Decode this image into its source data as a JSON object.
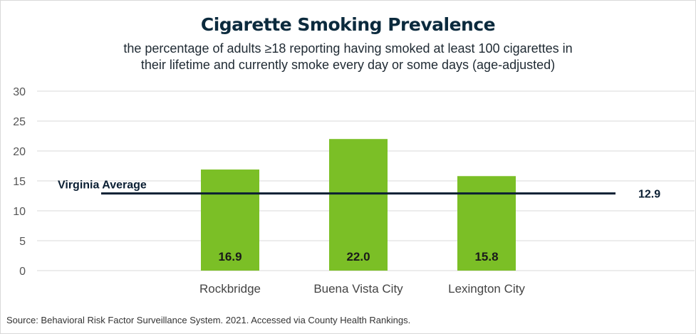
{
  "chart_data": {
    "type": "bar",
    "title": "Cigarette Smoking Prevalence",
    "subtitle_lines": [
      "the percentage of adults ≥18 reporting having smoked at least 100 cigarettes in",
      "their lifetime and currently smoke every day or some days (age-adjusted)"
    ],
    "categories": [
      "Rockbridge",
      "Buena Vista City",
      "Lexington City"
    ],
    "values": [
      16.9,
      22.0,
      15.8
    ],
    "value_labels": [
      "16.9",
      "22.0",
      "15.8"
    ],
    "ylim": [
      0,
      30
    ],
    "yticks": [
      0,
      5,
      10,
      15,
      20,
      25,
      30
    ],
    "grid": true,
    "legend": "none",
    "reference_line": {
      "label": "Virginia Average",
      "value": 12.9,
      "value_label": "12.9"
    },
    "colors": {
      "bar": "#7bbf26",
      "reference_line": "#0b1f33",
      "grid": "#d9d9d9",
      "title": "#0b2a3d"
    }
  },
  "source_note": "Source:  Behavioral Risk Factor Surveillance System. 2021. Accessed via County Health Rankings."
}
